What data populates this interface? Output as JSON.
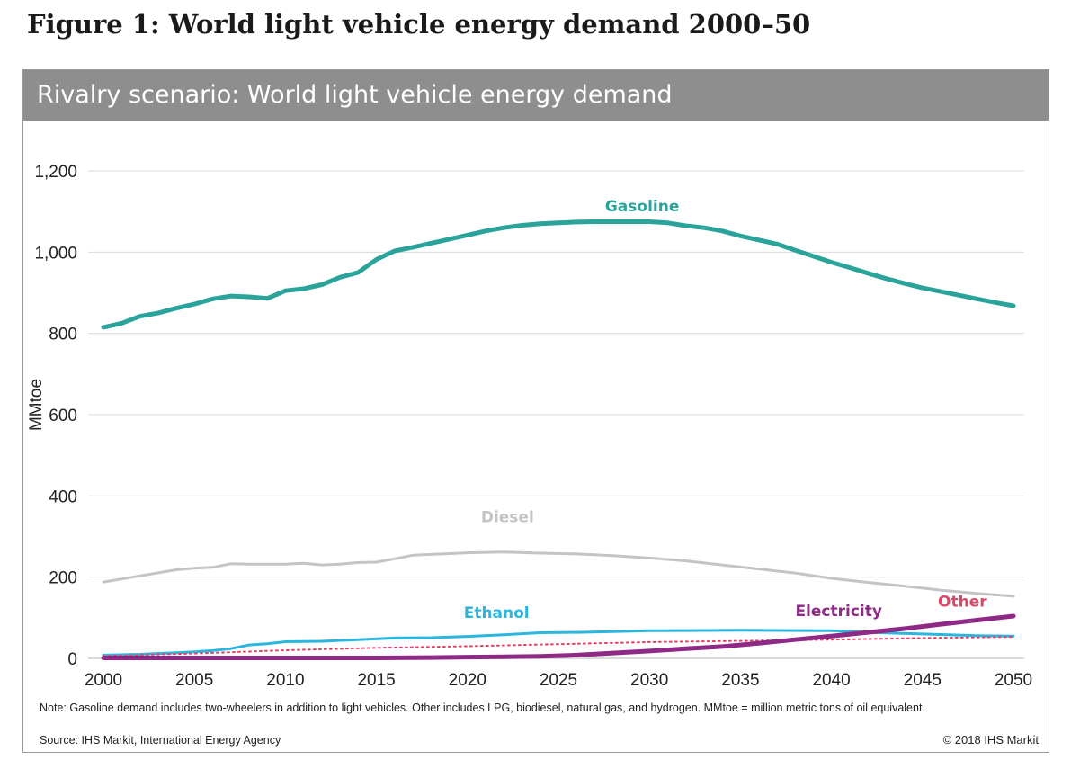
{
  "figure_title": "Figure 1: World light vehicle energy demand 2000–50",
  "panel_title": "Rivalry scenario: World light vehicle energy demand",
  "note": "Note: Gasoline demand includes two-wheelers in addition to light vehicles.  Other includes LPG, biodiesel, natural gas, and hydrogen. MMtoe = million metric tons of oil equivalent.",
  "source": "Source: IHS Markit, International Energy Agency",
  "copyright": "© 2018 IHS Markit",
  "chart_data": {
    "type": "line",
    "title": "Rivalry scenario: World light vehicle energy demand",
    "xlabel": "",
    "ylabel": "MMtoe",
    "xlim": [
      2000,
      2050
    ],
    "ylim": [
      0,
      1200
    ],
    "x_ticks": [
      2000,
      2005,
      2010,
      2015,
      2020,
      2025,
      2030,
      2035,
      2040,
      2045,
      2050
    ],
    "x_tick_labels": [
      "2000",
      "2005",
      "2010",
      "2015",
      "2020",
      "2025",
      "2030",
      "2035",
      "2040",
      "2045",
      "2050"
    ],
    "y_ticks": [
      0,
      200,
      400,
      600,
      800,
      1000,
      1200
    ],
    "y_tick_labels": [
      "0",
      "200",
      "400",
      "600",
      "800",
      "1,000",
      "1,200"
    ],
    "grid": "horizontal",
    "legend": "inline labels",
    "series": [
      {
        "name": "Gasoline",
        "color": "#2aa39a",
        "style": "solid-thick",
        "label_at": [
          2029.6,
          1100
        ],
        "points": [
          [
            2000,
            815
          ],
          [
            2001,
            825
          ],
          [
            2002,
            842
          ],
          [
            2003,
            850
          ],
          [
            2004,
            862
          ],
          [
            2005,
            872
          ],
          [
            2006,
            885
          ],
          [
            2007,
            892
          ],
          [
            2008,
            890
          ],
          [
            2009,
            886
          ],
          [
            2010,
            905
          ],
          [
            2011,
            910
          ],
          [
            2012,
            920
          ],
          [
            2013,
            938
          ],
          [
            2014,
            950
          ],
          [
            2015,
            982
          ],
          [
            2016,
            1003
          ],
          [
            2017,
            1012
          ],
          [
            2018,
            1022
          ],
          [
            2019,
            1032
          ],
          [
            2020,
            1042
          ],
          [
            2021,
            1052
          ],
          [
            2022,
            1060
          ],
          [
            2023,
            1066
          ],
          [
            2024,
            1070
          ],
          [
            2025,
            1072
          ],
          [
            2026,
            1074
          ],
          [
            2027,
            1075
          ],
          [
            2028,
            1075
          ],
          [
            2029,
            1075
          ],
          [
            2030,
            1075
          ],
          [
            2031,
            1072
          ],
          [
            2032,
            1065
          ],
          [
            2033,
            1060
          ],
          [
            2034,
            1052
          ],
          [
            2035,
            1040
          ],
          [
            2036,
            1030
          ],
          [
            2037,
            1020
          ],
          [
            2038,
            1005
          ],
          [
            2039,
            990
          ],
          [
            2040,
            975
          ],
          [
            2041,
            962
          ],
          [
            2042,
            948
          ],
          [
            2043,
            935
          ],
          [
            2044,
            923
          ],
          [
            2045,
            912
          ],
          [
            2046,
            903
          ],
          [
            2047,
            894
          ],
          [
            2048,
            885
          ],
          [
            2049,
            876
          ],
          [
            2050,
            868
          ]
        ]
      },
      {
        "name": "Diesel",
        "color": "#c4c4c4",
        "style": "solid",
        "label_at": [
          2022.2,
          335
        ],
        "points": [
          [
            2000,
            188
          ],
          [
            2002,
            203
          ],
          [
            2004,
            218
          ],
          [
            2005,
            222
          ],
          [
            2006,
            224
          ],
          [
            2007,
            233
          ],
          [
            2008,
            232
          ],
          [
            2010,
            232
          ],
          [
            2011,
            234
          ],
          [
            2012,
            230
          ],
          [
            2013,
            232
          ],
          [
            2014,
            236
          ],
          [
            2015,
            237
          ],
          [
            2016,
            245
          ],
          [
            2017,
            254
          ],
          [
            2018,
            256
          ],
          [
            2020,
            260
          ],
          [
            2022,
            262
          ],
          [
            2024,
            259
          ],
          [
            2026,
            257
          ],
          [
            2028,
            253
          ],
          [
            2030,
            247
          ],
          [
            2032,
            240
          ],
          [
            2034,
            230
          ],
          [
            2036,
            220
          ],
          [
            2038,
            210
          ],
          [
            2040,
            197
          ],
          [
            2042,
            187
          ],
          [
            2044,
            178
          ],
          [
            2046,
            168
          ],
          [
            2048,
            160
          ],
          [
            2050,
            153
          ]
        ]
      },
      {
        "name": "Ethanol",
        "color": "#2bb6e0",
        "style": "solid",
        "label_at": [
          2021.6,
          100
        ],
        "points": [
          [
            2000,
            8
          ],
          [
            2002,
            10
          ],
          [
            2004,
            14
          ],
          [
            2005,
            16
          ],
          [
            2006,
            19
          ],
          [
            2007,
            24
          ],
          [
            2008,
            33
          ],
          [
            2009,
            36
          ],
          [
            2010,
            41
          ],
          [
            2012,
            42
          ],
          [
            2014,
            46
          ],
          [
            2016,
            50
          ],
          [
            2018,
            51
          ],
          [
            2020,
            54
          ],
          [
            2022,
            58
          ],
          [
            2024,
            63
          ],
          [
            2026,
            64
          ],
          [
            2028,
            66
          ],
          [
            2030,
            68
          ],
          [
            2035,
            69
          ],
          [
            2040,
            68
          ],
          [
            2042,
            64
          ],
          [
            2045,
            60
          ],
          [
            2048,
            56
          ],
          [
            2050,
            55
          ]
        ]
      },
      {
        "name": "Other",
        "color": "#d9476a",
        "style": "dotted",
        "label_at": [
          2047.2,
          127
        ],
        "points": [
          [
            2000,
            6
          ],
          [
            2005,
            12
          ],
          [
            2010,
            20
          ],
          [
            2015,
            26
          ],
          [
            2020,
            30
          ],
          [
            2025,
            35
          ],
          [
            2030,
            40
          ],
          [
            2035,
            43
          ],
          [
            2040,
            46
          ],
          [
            2045,
            50
          ],
          [
            2050,
            53
          ]
        ]
      },
      {
        "name": "Electricity",
        "color": "#8e2a86",
        "style": "solid-thick",
        "label_at": [
          2040.4,
          104
        ],
        "points": [
          [
            2000,
            1
          ],
          [
            2005,
            1
          ],
          [
            2010,
            1
          ],
          [
            2015,
            1
          ],
          [
            2018,
            2
          ],
          [
            2020,
            3
          ],
          [
            2022,
            4
          ],
          [
            2024,
            5
          ],
          [
            2026,
            8
          ],
          [
            2028,
            13
          ],
          [
            2030,
            18
          ],
          [
            2032,
            24
          ],
          [
            2034,
            29
          ],
          [
            2036,
            37
          ],
          [
            2038,
            46
          ],
          [
            2040,
            55
          ],
          [
            2042,
            64
          ],
          [
            2044,
            73
          ],
          [
            2046,
            84
          ],
          [
            2048,
            94
          ],
          [
            2050,
            104
          ]
        ]
      }
    ]
  }
}
